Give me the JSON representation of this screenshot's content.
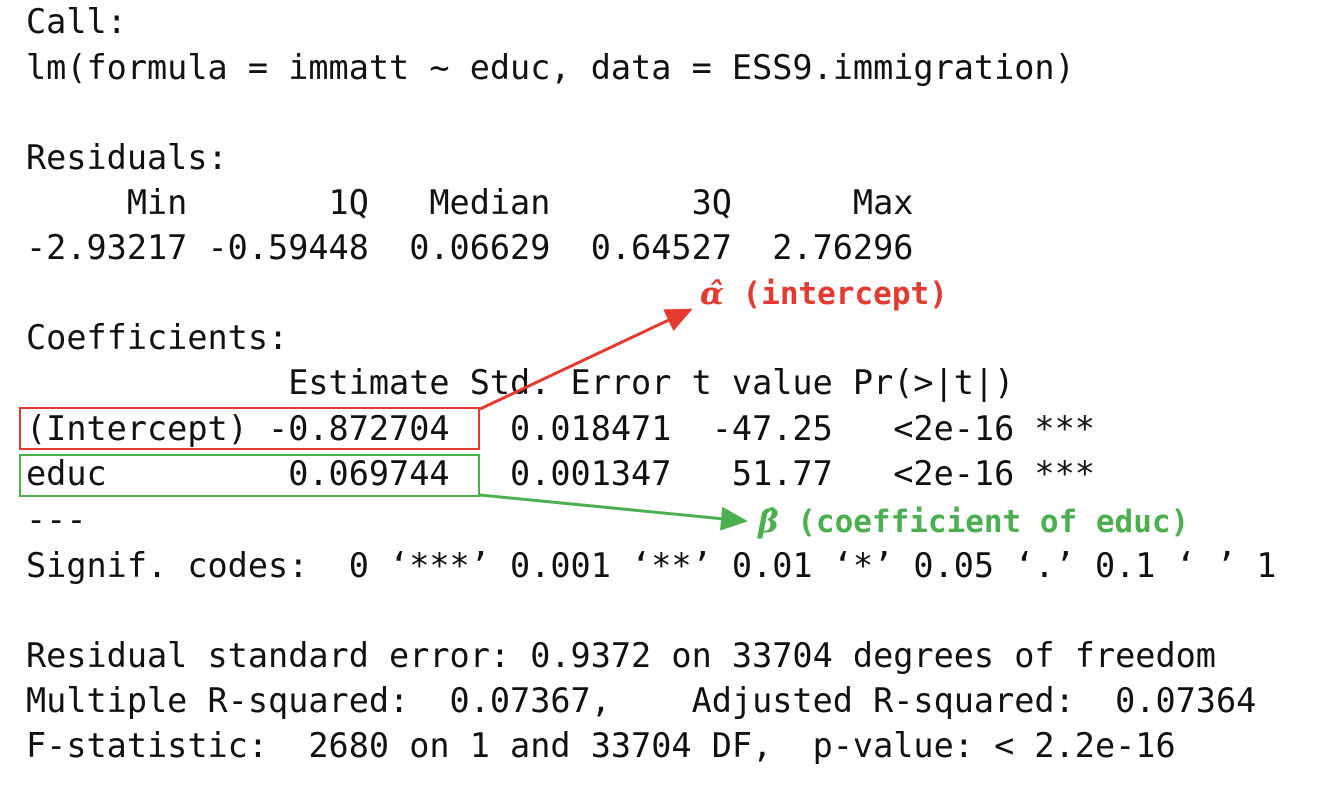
{
  "output": {
    "call_header": "Call:",
    "call": "lm(formula = immatt ~ educ, data = ESS9.immigration)",
    "residuals_header": "Residuals:",
    "residuals_labels": "     Min       1Q   Median       3Q      Max",
    "residuals_values": "-2.93217 -0.59448  0.06629  0.64527  2.76296",
    "coefficients_header": "Coefficients:",
    "coef_columns": "             Estimate Std. Error t value Pr(>|t|)",
    "coef_row_intercept": "(Intercept) -0.872704   0.018471  -47.25   <2e-16 ***",
    "coef_row_educ": "educ         0.069744   0.001347   51.77   <2e-16 ***",
    "separator": "---",
    "signif_codes": "Signif. codes:  0 ‘***’ 0.001 ‘**’ 0.01 ‘*’ 0.05 ‘.’ 0.1 ‘ ’ 1",
    "rse": "Residual standard error: 0.9372 on 33704 degrees of freedom",
    "rsquared": "Multiple R-squared:  0.07367,    Adjusted R-squared:  0.07364",
    "fstat": "F-statistic:  2680 on 1 and 33704 DF,  p-value: < 2.2e-16"
  },
  "annotations": {
    "intercept_symbol": "α̂",
    "intercept_label": " (intercept)",
    "intercept_color": "#e53a2f",
    "slope_symbol": "β̂",
    "slope_label": " (coefficient of educ)",
    "slope_color": "#4caf50"
  }
}
